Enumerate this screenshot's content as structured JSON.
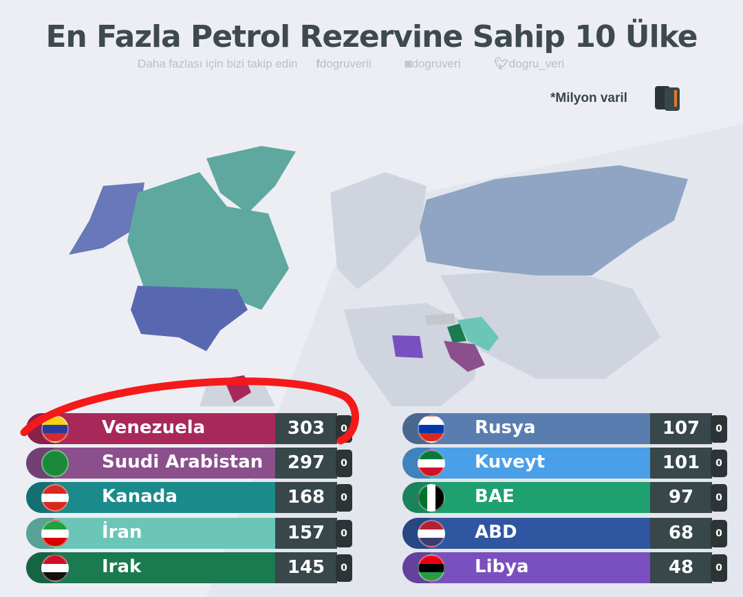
{
  "header": {
    "title": "En Fazla Petrol Rezervine Sahip 10 Ülke",
    "subtitle": "Daha fazlası için bizi takip edin",
    "facebook": "dogruverii",
    "instagram": "dogruveri",
    "twitter": "dogru_veri",
    "unit_note": "*Milyon varil"
  },
  "chart_data": {
    "type": "bar",
    "title": "En Fazla Petrol Rezervine Sahip 10 Ülke",
    "unit": "*Milyon varil",
    "categories": [
      "Venezuela",
      "Suudi Arabistan",
      "Kanada",
      "İran",
      "Irak",
      "Rusya",
      "Kuveyt",
      "BAE",
      "ABD",
      "Libya"
    ],
    "values": [
      303,
      297,
      168,
      157,
      145,
      107,
      101,
      97,
      68,
      48
    ],
    "colors": [
      "#a8285a",
      "#8b4f8c",
      "#1a8a8a",
      "#6cc6b8",
      "#1a7a50",
      "#5a7db0",
      "#4aa0e8",
      "#1fa070",
      "#2f56a0",
      "#7a4fbf"
    ]
  },
  "barrel_label": "oil"
}
